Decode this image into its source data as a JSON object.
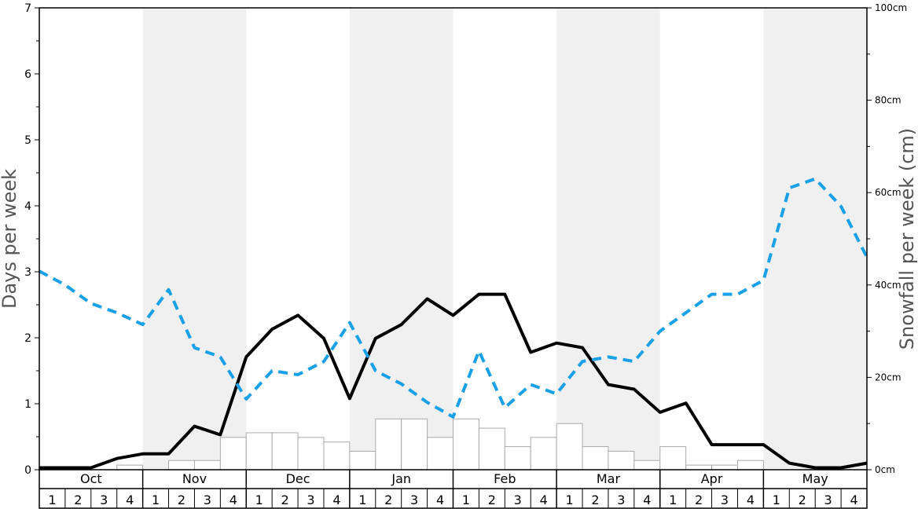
{
  "chart_data": {
    "type": "bar",
    "ylabel_left": "Days per week",
    "ylabel_right": "Snowfall per week (cm)",
    "ylim_left": [
      0,
      7
    ],
    "ylim_right": [
      0,
      100
    ],
    "left_ticks": [
      "0",
      "1",
      "2",
      "3",
      "4",
      "5",
      "6",
      "7"
    ],
    "right_ticks": [
      "0cm",
      "20cm",
      "40cm",
      "60cm",
      "80cm",
      "100cm"
    ],
    "months": [
      "Oct",
      "Nov",
      "Dec",
      "Jan",
      "Feb",
      "Mar",
      "Apr",
      "May"
    ],
    "weeks": [
      "1",
      "2",
      "3",
      "4"
    ],
    "month_shading": [
      false,
      true,
      false,
      true,
      false,
      true,
      false,
      true
    ],
    "series": [
      {
        "kind": "bar",
        "axis": "right",
        "values": [
          0,
          0,
          0,
          1,
          0,
          2,
          2,
          7,
          8,
          8,
          7,
          6,
          4,
          11,
          11,
          7,
          11,
          9,
          5,
          7,
          10,
          5,
          4,
          2,
          5,
          1,
          1,
          2,
          0,
          0,
          0,
          0
        ]
      },
      {
        "kind": "line",
        "axis": "left",
        "style": "solid",
        "color": "#000000",
        "values": [
          0.03,
          0.03,
          0.03,
          0.17,
          0.24,
          0.24,
          0.66,
          0.53,
          1.71,
          2.13,
          2.34,
          1.99,
          1.08,
          1.99,
          2.2,
          2.59,
          2.34,
          2.66,
          2.66,
          1.78,
          1.92,
          1.85,
          1.29,
          1.22,
          0.87,
          1.01,
          0.38,
          0.38,
          0.38,
          0.1,
          0.03,
          0.03,
          0.1
        ]
      },
      {
        "kind": "line",
        "axis": "left",
        "style": "dashed",
        "color": "#1aa0e6",
        "values": [
          3.01,
          2.8,
          2.52,
          2.38,
          2.2,
          2.73,
          1.85,
          1.71,
          1.07,
          1.5,
          1.44,
          1.64,
          2.23,
          1.5,
          1.3,
          1.02,
          0.8,
          1.8,
          0.94,
          1.29,
          1.15,
          1.64,
          1.71,
          1.64,
          2.1,
          2.38,
          2.66,
          2.66,
          2.87,
          4.27,
          4.41,
          3.99,
          3.22
        ]
      }
    ]
  }
}
